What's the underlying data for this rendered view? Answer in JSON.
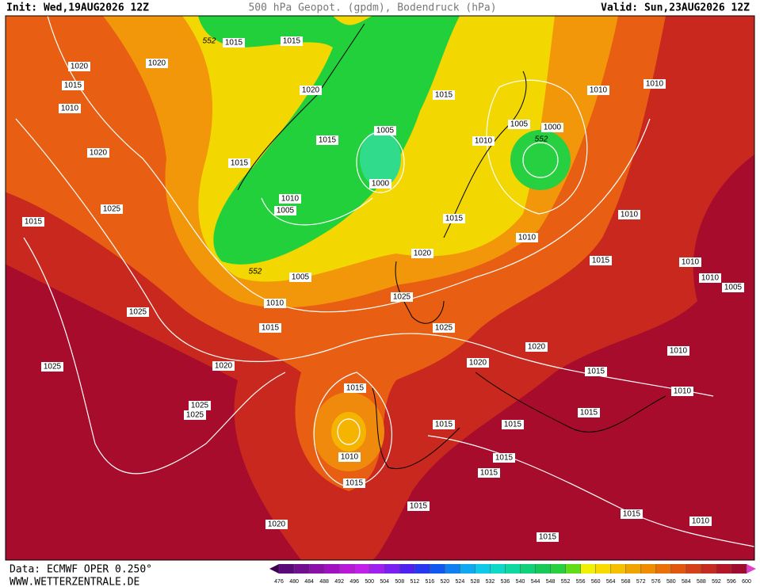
{
  "header": {
    "init": "Init: Wed,19AUG2026 12Z",
    "title": "500 hPa Geopot. (gpdm), Bodendruck (hPa)",
    "valid": "Valid: Sun,23AUG2026 12Z"
  },
  "footer": {
    "data_source": "Data: ECMWF OPER 0.250°",
    "website": "WWW.WETTERZENTRALE.DE"
  },
  "map": {
    "isobar_labels": [
      1015,
      1015,
      1020,
      1020,
      1015,
      1010,
      1020,
      1015,
      1010,
      1010,
      1005,
      1000,
      1005,
      1015,
      1010,
      1015,
      1020,
      1000,
      1010,
      1005,
      1025,
      1015,
      1015,
      1010,
      1010,
      1020,
      1015,
      1010,
      1010,
      1005,
      1005,
      1010,
      1025,
      1025,
      1015,
      1025,
      1020,
      1010,
      1020,
      1020,
      1025,
      1015,
      1015,
      1010,
      1025,
      1025,
      1015,
      1015,
      1015,
      1010,
      1015,
      1015,
      1015,
      1015,
      1015,
      1020,
      1010,
      1015
    ],
    "height_labels": [
      552,
      552,
      552
    ]
  },
  "colorbar": {
    "labels": [
      476,
      480,
      484,
      488,
      492,
      496,
      500,
      504,
      508,
      512,
      516,
      520,
      524,
      528,
      532,
      536,
      540,
      544,
      548,
      552,
      556,
      560,
      564,
      568,
      572,
      576,
      580,
      584,
      588,
      592,
      596,
      600
    ],
    "colors": [
      "#3c0050",
      "#5a0a78",
      "#700f90",
      "#8a10a8",
      "#a012c0",
      "#b818d8",
      "#c020e8",
      "#a020f0",
      "#7a20f0",
      "#5020f0",
      "#2838f0",
      "#1058f0",
      "#1080f0",
      "#10a8f0",
      "#10c8e8",
      "#10d8c8",
      "#10d8a0",
      "#10d078",
      "#18c858",
      "#28d040",
      "#60dc18",
      "#f0f000",
      "#f8dc00",
      "#f4c000",
      "#f0a400",
      "#f08c00",
      "#ea7008",
      "#e05810",
      "#d44018",
      "#c42c20",
      "#b41828",
      "#a00c30",
      "#e040c8"
    ]
  }
}
